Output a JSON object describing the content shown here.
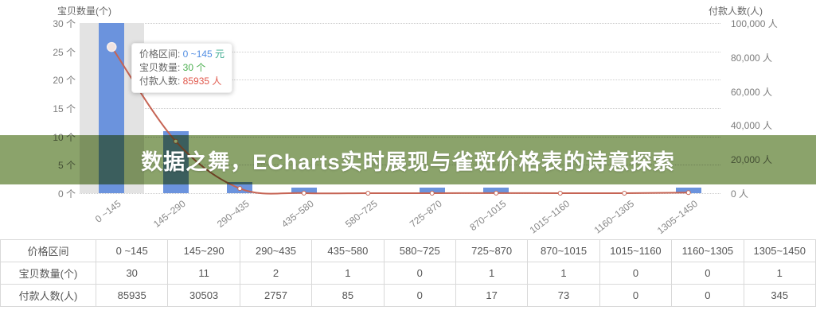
{
  "banner": {
    "title": "数据之舞，ECharts实时展现与雀斑价格表的诗意探索",
    "bg_color": "#8ba36b"
  },
  "chart_data": {
    "type": "bar-line-combo",
    "categories": [
      "0 ~145",
      "145~290",
      "290~435",
      "435~580",
      "580~725",
      "725~870",
      "870~1015",
      "1015~1160",
      "1160~1305",
      "1305~1450"
    ],
    "series": [
      {
        "name": "宝贝数量",
        "chart": "bar",
        "unit": "个",
        "color": "#6b93dd",
        "axis": "left",
        "values": [
          30,
          11,
          2,
          1,
          0,
          1,
          1,
          0,
          0,
          1
        ]
      },
      {
        "name": "付款人数",
        "chart": "line",
        "unit": "人",
        "color": "#c66454",
        "axis": "right",
        "values": [
          85935,
          30503,
          2757,
          85,
          0,
          17,
          73,
          0,
          0,
          345
        ]
      }
    ],
    "left_axis": {
      "name": "宝贝数量(个)",
      "min": 0,
      "max": 30,
      "tick_values": [
        30,
        25,
        20,
        15,
        10,
        5,
        0
      ],
      "tick_labels": [
        "30 个",
        "25 个",
        "20 个",
        "15 个",
        "10 个",
        "5 个",
        "0 个"
      ]
    },
    "right_axis": {
      "name": "付款人数(人)",
      "min": 0,
      "max": 100000,
      "tick_values": [
        100000,
        80000,
        60000,
        40000,
        20000,
        0
      ],
      "tick_labels": [
        "100,000 人",
        "80,000 人",
        "60,000 人",
        "40,000 人",
        "20,000 人",
        "0 人"
      ]
    },
    "highlighted_category_index": 0,
    "grid": true,
    "legend_position": "none"
  },
  "tooltip": {
    "rows": [
      {
        "label": "价格区间:",
        "value": "0 ~145",
        "unit": "元",
        "value_color": "#548fe3",
        "unit_color": "#3aa98e"
      },
      {
        "label": "宝贝数量:",
        "value": "30",
        "unit": "个",
        "value_color": "#4caf50",
        "unit_color": "#4caf50"
      },
      {
        "label": "付款人数:",
        "value": "85935",
        "unit": "人",
        "value_color": "#e0584c",
        "unit_color": "#e0584c"
      }
    ]
  },
  "table": {
    "corner_label": "价格区间",
    "columns": [
      "0 ~145",
      "145~290",
      "290~435",
      "435~580",
      "580~725",
      "725~870",
      "870~1015",
      "1015~1160",
      "1160~1305",
      "1305~1450"
    ],
    "rows": [
      {
        "label": "宝贝数量(个)",
        "values": [
          "30",
          "11",
          "2",
          "1",
          "0",
          "1",
          "1",
          "0",
          "0",
          "1"
        ]
      },
      {
        "label": "付款人数(人)",
        "values": [
          "85935",
          "30503",
          "2757",
          "85",
          "0",
          "17",
          "73",
          "0",
          "0",
          "345"
        ]
      }
    ]
  }
}
